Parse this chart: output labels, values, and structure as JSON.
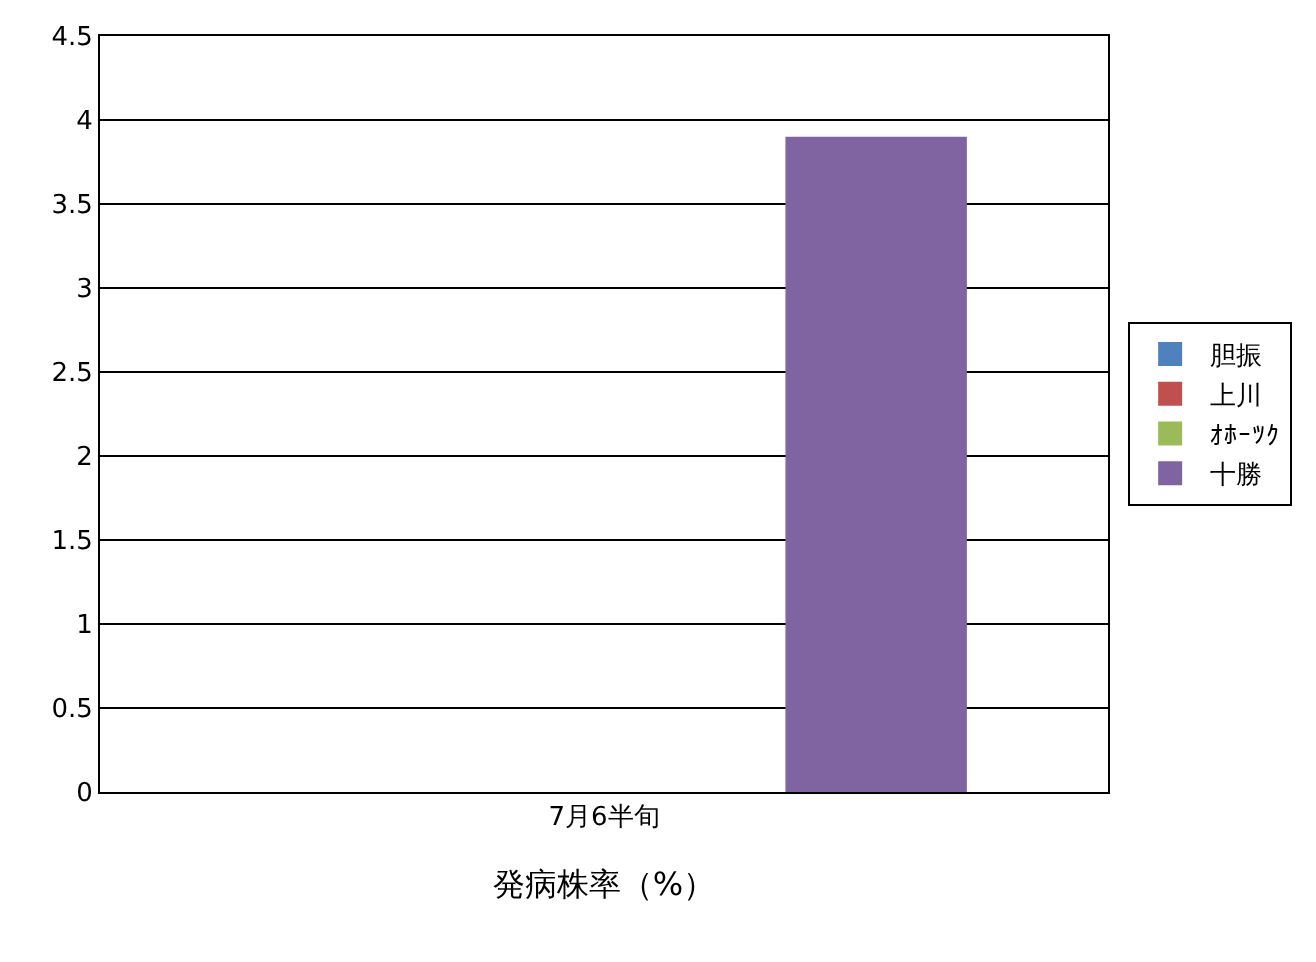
{
  "chart_data": {
    "type": "bar",
    "xlabel": "発病株率（%）",
    "categories": [
      "7月6半旬"
    ],
    "series": [
      {
        "name": "胆振",
        "color": "#4f81bd",
        "values": [
          null
        ]
      },
      {
        "name": "上川",
        "color": "#c0504d",
        "values": [
          null
        ]
      },
      {
        "name": "ｵﾎｰﾂｸ",
        "color": "#9bbb59",
        "values": [
          null
        ]
      },
      {
        "name": "十勝",
        "color": "#8064a2",
        "values": [
          3.9
        ]
      }
    ],
    "ylim": [
      0,
      4.5
    ],
    "yticks": [
      0,
      0.5,
      1,
      1.5,
      2,
      2.5,
      3,
      3.5,
      4,
      4.5
    ],
    "grid": "y",
    "legend": "right"
  }
}
